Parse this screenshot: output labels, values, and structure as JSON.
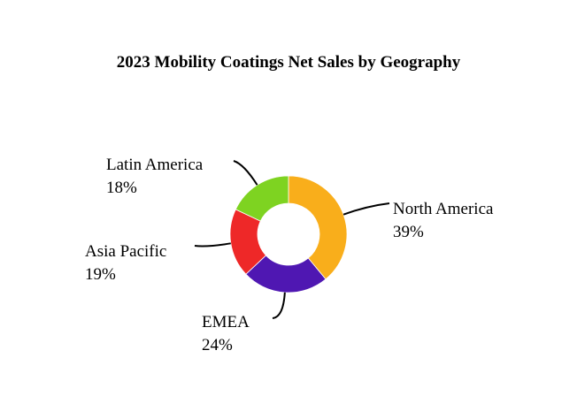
{
  "chart_data": {
    "type": "pie",
    "title": "2023 Mobility Coatings Net Sales by Geography",
    "categories": [
      "North America",
      "EMEA",
      "Asia Pacific",
      "Latin America"
    ],
    "values": [
      39,
      24,
      19,
      18
    ],
    "value_labels": [
      "39%",
      "24%",
      "19%",
      "18%"
    ],
    "colors": [
      "#F9AE1B",
      "#4F17B2",
      "#EE2828",
      "#7ED321"
    ],
    "donut": true,
    "legend": "none"
  }
}
